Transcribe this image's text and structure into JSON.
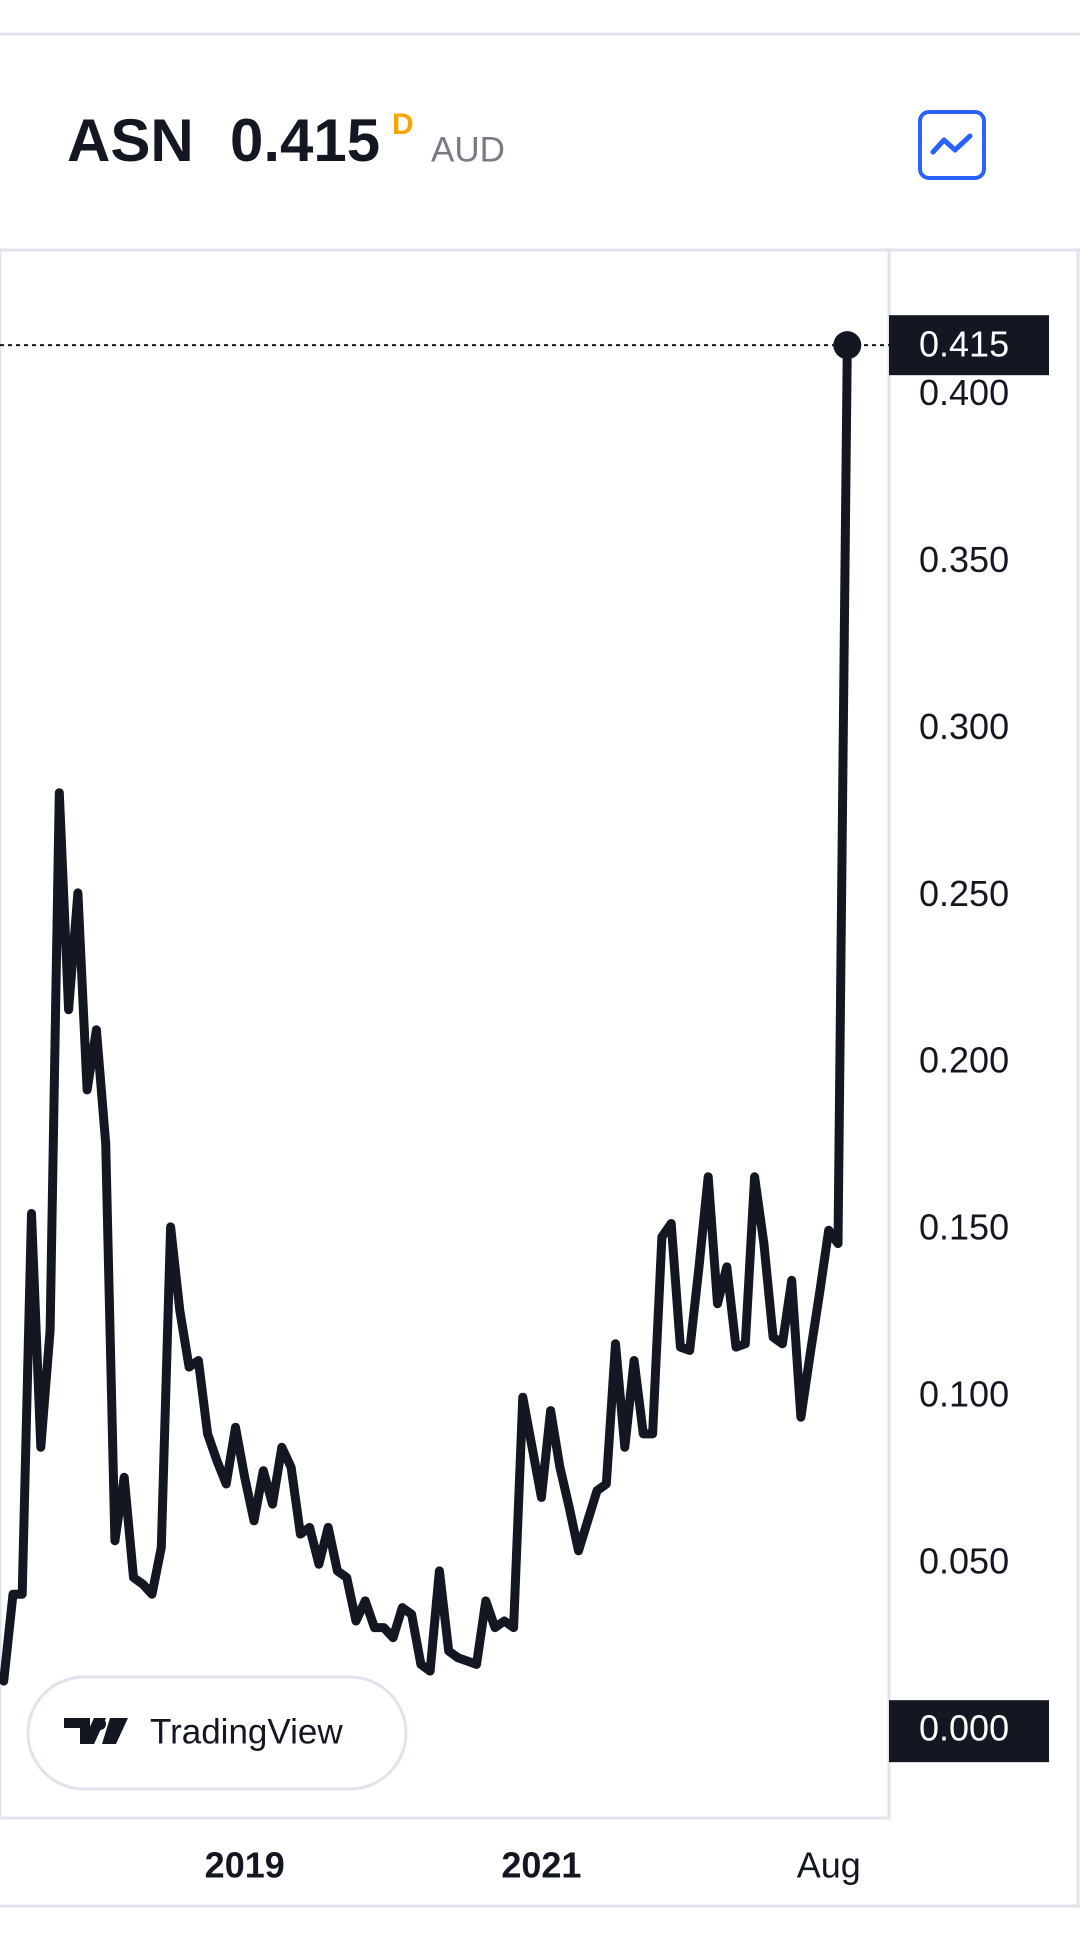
{
  "header": {
    "symbol": "ASN",
    "price": "0.415",
    "interval": "D",
    "currency": "AUD"
  },
  "watermark": "TradingView",
  "chart_data": {
    "type": "line",
    "color": "#131722",
    "values": [
      0.015,
      0.041,
      0.041,
      0.155,
      0.085,
      0.12,
      0.281,
      0.216,
      0.251,
      0.192,
      0.21,
      0.176,
      0.057,
      0.076,
      0.046,
      0.044,
      0.041,
      0.055,
      0.151,
      0.126,
      0.109,
      0.111,
      0.089,
      0.081,
      0.074,
      0.091,
      0.076,
      0.063,
      0.078,
      0.068,
      0.085,
      0.079,
      0.059,
      0.061,
      0.05,
      0.061,
      0.048,
      0.046,
      0.033,
      0.039,
      0.031,
      0.031,
      0.028,
      0.037,
      0.035,
      0.02,
      0.018,
      0.048,
      0.024,
      0.022,
      0.021,
      0.02,
      0.039,
      0.031,
      0.033,
      0.031,
      0.1,
      0.085,
      0.07,
      0.096,
      0.079,
      0.067,
      0.054,
      0.063,
      0.072,
      0.074,
      0.116,
      0.085,
      0.111,
      0.089,
      0.089,
      0.148,
      0.152,
      0.115,
      0.114,
      0.139,
      0.166,
      0.128,
      0.139,
      0.115,
      0.116,
      0.166,
      0.146,
      0.118,
      0.116,
      0.135,
      0.094,
      0.113,
      0.131,
      0.15,
      0.146,
      0.415
    ],
    "xlim": [
      -0.4,
      95.5
    ],
    "xticks": [
      {
        "value": 26,
        "label": "2019"
      },
      {
        "value": 58,
        "label": "2021"
      },
      {
        "value": 89,
        "label": "Aug"
      }
    ],
    "ylim": [
      -0.026,
      0.4435
    ],
    "yticks": [
      {
        "value": 0,
        "label": "0.000"
      },
      {
        "value": 0.05,
        "label": "0.050"
      },
      {
        "value": 0.1,
        "label": "0.100"
      },
      {
        "value": 0.15,
        "label": "0.150"
      },
      {
        "value": 0.2,
        "label": "0.200"
      },
      {
        "value": 0.25,
        "label": "0.250"
      },
      {
        "value": 0.3,
        "label": "0.300"
      },
      {
        "value": 0.35,
        "label": "0.350"
      },
      {
        "value": 0.4,
        "label": "0.400"
      }
    ]
  }
}
